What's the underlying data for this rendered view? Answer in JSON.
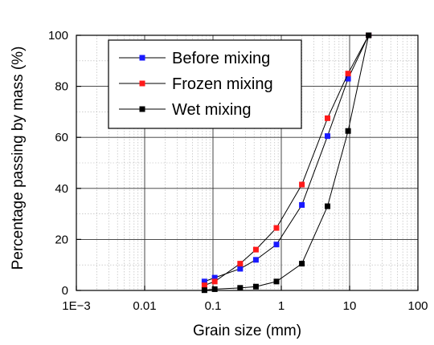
{
  "chart_data": {
    "type": "line",
    "title": "",
    "xlabel": "Grain size (mm)",
    "ylabel": "Percentage passing by mass (%)",
    "x_scale": "log",
    "xlim": [
      0.001,
      100
    ],
    "ylim": [
      0,
      100
    ],
    "x_ticks": [
      0.001,
      0.01,
      0.1,
      1,
      10,
      100
    ],
    "x_tick_labels": [
      "1E−3",
      "0.01",
      "0.1",
      "1",
      "10",
      "100"
    ],
    "y_ticks": [
      0,
      20,
      40,
      60,
      80,
      100
    ],
    "y_tick_labels": [
      "0",
      "20",
      "40",
      "60",
      "80",
      "100"
    ],
    "grid": true,
    "legend_position": "top-left",
    "series": [
      {
        "name": "Before mixing",
        "color": "#1a1aff",
        "marker": "square",
        "x": [
          0.075,
          0.106,
          0.25,
          0.425,
          0.85,
          2,
          4.75,
          9.5,
          19
        ],
        "y": [
          3.5,
          5,
          8.5,
          12,
          18,
          33.5,
          60.5,
          83,
          100
        ]
      },
      {
        "name": "Frozen mixing",
        "color": "#ff1a1a",
        "marker": "square",
        "x": [
          0.075,
          0.106,
          0.25,
          0.425,
          0.85,
          2,
          4.75,
          9.5,
          19
        ],
        "y": [
          2,
          3.5,
          10.5,
          16,
          24.5,
          41.5,
          67.5,
          85,
          100
        ]
      },
      {
        "name": "Wet mixing",
        "color": "#000000",
        "marker": "square",
        "x": [
          0.075,
          0.106,
          0.25,
          0.425,
          0.85,
          2,
          4.75,
          9.5,
          19
        ],
        "y": [
          0.1,
          0.5,
          1,
          1.5,
          3.5,
          10.5,
          33,
          62.5,
          100
        ]
      }
    ]
  }
}
